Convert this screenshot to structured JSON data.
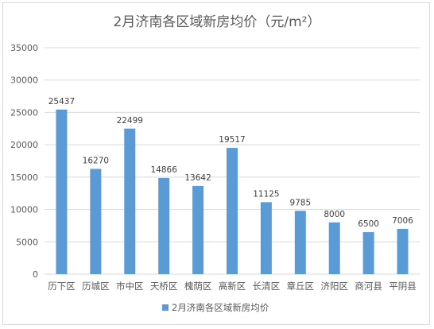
{
  "chart_data": {
    "type": "bar",
    "title": "2月济南各区域新房均价（元/m²）",
    "categories": [
      "历下区",
      "历城区",
      "市中区",
      "天桥区",
      "槐荫区",
      "高新区",
      "长清区",
      "章丘区",
      "济阳区",
      "商河县",
      "平阴县"
    ],
    "series": [
      {
        "name": "2月济南各区域新房均价",
        "values": [
          25437,
          16270,
          22499,
          14866,
          13642,
          19517,
          11125,
          9785,
          8000,
          6500,
          7006
        ]
      }
    ],
    "y_ticks": [
      "0",
      "5000",
      "10000",
      "15000",
      "20000",
      "25000",
      "30000",
      "35000"
    ],
    "ylim": [
      0,
      35000
    ],
    "grid": true,
    "legend_position": "bottom",
    "bar_color": "#5b9bd5"
  }
}
